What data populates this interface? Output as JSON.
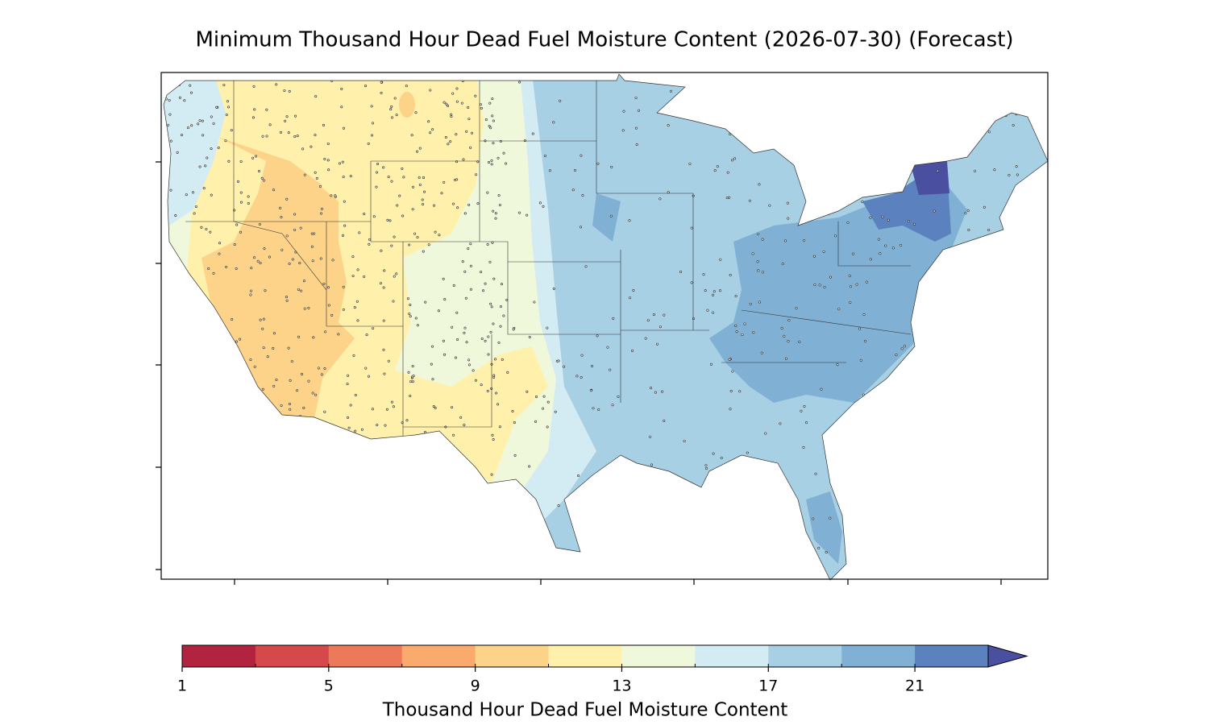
{
  "title": "Minimum Thousand Hour Dead Fuel Moisture Content (2026-07-30) (Forecast)",
  "colorbar": {
    "label": "Thousand Hour Dead Fuel Moisture Content",
    "levels": [
      1,
      3,
      5,
      7,
      9,
      11,
      13,
      15,
      17,
      19,
      21,
      23
    ],
    "colors": [
      "#b2233f",
      "#d6494a",
      "#ec7a5a",
      "#f9aa6c",
      "#fdd38a",
      "#fff1ab",
      "#f0f8dc",
      "#d3ebf3",
      "#a8d0e5",
      "#80b0d3",
      "#5b82be"
    ],
    "extend_color": "#4a4fa0",
    "ticks": [
      1,
      5,
      9,
      13,
      17,
      21
    ]
  }
}
